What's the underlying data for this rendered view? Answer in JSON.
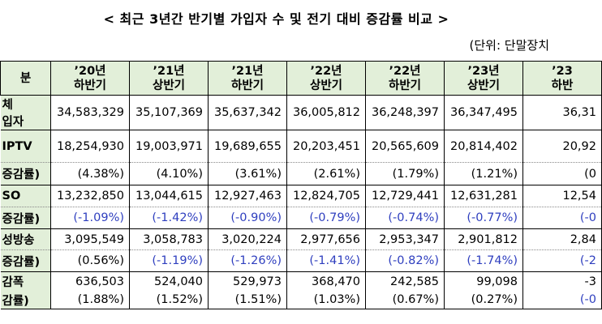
{
  "header": {
    "title": "< 최근 3년간 반기별 가입자 수 및 전기 대비 증감률 비교 >",
    "unit": "(단위:  단말장치"
  },
  "table": {
    "columns": [
      "분",
      "’20년\n하반기",
      "’21년\n상반기",
      "’21년\n하반기",
      "’22년\n상반기",
      "’22년\n하반기",
      "’23년\n상반기",
      "’23\n하반"
    ],
    "rows": [
      [
        "체\n입자",
        "34,583,329",
        "35,107,369",
        "35,637,342",
        "36,005,812",
        "36,248,397",
        "36,347,495",
        "36,31"
      ],
      [
        "IPTV",
        "18,254,930",
        "19,003,971",
        "19,689,655",
        "20,203,451",
        "20,565,609",
        "20,814,402",
        "20,92"
      ],
      [
        "증감률)",
        "(4.38%)",
        "(4.10%)",
        "(3.61%)",
        "(2.61%)",
        "(1.79%)",
        "(1.21%)",
        "(0"
      ],
      [
        "SO",
        "13,232,850",
        "13,044,615",
        "12,927,463",
        "12,824,705",
        "12,729,441",
        "12,631,281",
        "12,54"
      ],
      [
        "증감률)",
        "(-1.09%)",
        "(-1.42%)",
        "(-0.90%)",
        "(-0.79%)",
        "(-0.74%)",
        "(-0.77%)",
        "(-0"
      ],
      [
        "성방송",
        "3,095,549",
        "3,058,783",
        "3,020,224",
        "2,977,656",
        "2,953,347",
        "2,901,812",
        "2,84"
      ],
      [
        "증감률)",
        "(0.56%)",
        "(-1.19%)",
        "(-1.26%)",
        "(-1.41%)",
        "(-0.82%)",
        "(-1.74%)",
        "(-2"
      ],
      [
        "감폭",
        "636,503",
        "524,040",
        "529,973",
        "368,470",
        "242,585",
        "99,098",
        "-3"
      ],
      [
        "감률)",
        "(1.88%)",
        "(1.52%)",
        "(1.51%)",
        "(1.03%)",
        "(0.67%)",
        "(0.27%)",
        "(-0"
      ]
    ]
  }
}
